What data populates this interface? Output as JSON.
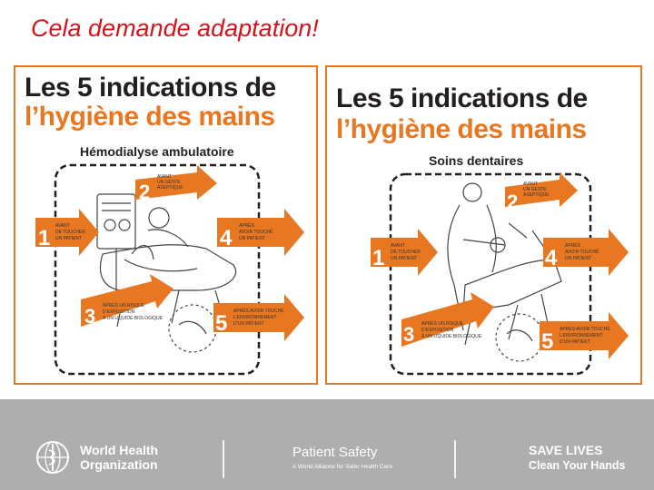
{
  "slide": {
    "title": "Cela demande adaptation!"
  },
  "posters": [
    {
      "title_line1": "Les 5 indications de",
      "title_line2": "l’hygiène des mains",
      "subtitle": "Hémodialyse ambulatoire",
      "moments": [
        {
          "number": "1",
          "text": [
            "AVANT",
            "DE TOUCHER",
            "UN PATIENT"
          ]
        },
        {
          "number": "2",
          "text": [
            "AVANT",
            "UN GESTE",
            "ASEPTIQUE"
          ]
        },
        {
          "number": "3",
          "text": [
            "APRÈS UN RISQUE",
            "D’EXPOSITION",
            "À UN LIQUIDE BIOLOGIQUE"
          ]
        },
        {
          "number": "4",
          "text": [
            "APRÈS",
            "AVOIR TOUCHÉ",
            "UN PATIENT"
          ]
        },
        {
          "number": "5",
          "text": [
            "APRÈS AVOIR TOUCHÉ",
            "L’ENVIRONNEMENT",
            "D’UN PATIENT"
          ]
        }
      ]
    },
    {
      "title_line1": "Les 5 indications de",
      "title_line2": "l’hygiène des mains",
      "subtitle": "Soins dentaires",
      "moments": [
        {
          "number": "1",
          "text": [
            "AVANT",
            "DE TOUCHER",
            "UN PATIENT"
          ]
        },
        {
          "number": "2",
          "text": [
            "AVANT",
            "UN GESTE",
            "ASEPTIQUE"
          ]
        },
        {
          "number": "3",
          "text": [
            "APRÈS UN RISQUE",
            "D’EXPOSITION",
            "À UN LIQUIDE BIOLOGIQUE"
          ]
        },
        {
          "number": "4",
          "text": [
            "APRÈS",
            "AVOIR TOUCHÉ",
            "UN PATIENT"
          ]
        },
        {
          "number": "5",
          "text": [
            "APRÈS AVOIR TOUCHÉ",
            "L’ENVIRONNEMENT",
            "D’UN PATIENT"
          ]
        }
      ]
    }
  ],
  "footer": {
    "who_line1": "World Health",
    "who_line2": "Organization",
    "ps_title": "Patient Safety",
    "ps_tagline": "A World Alliance for Safer Health Care",
    "sl_line1": "SAVE LIVES",
    "sl_line2": "Clean Your Hands"
  },
  "colors": {
    "title_red": "#d4141c",
    "orange": "#e87722",
    "footer_gray": "#aeaeae",
    "ink": "#231f20"
  },
  "icons": [
    "who-emblem-icon"
  ]
}
